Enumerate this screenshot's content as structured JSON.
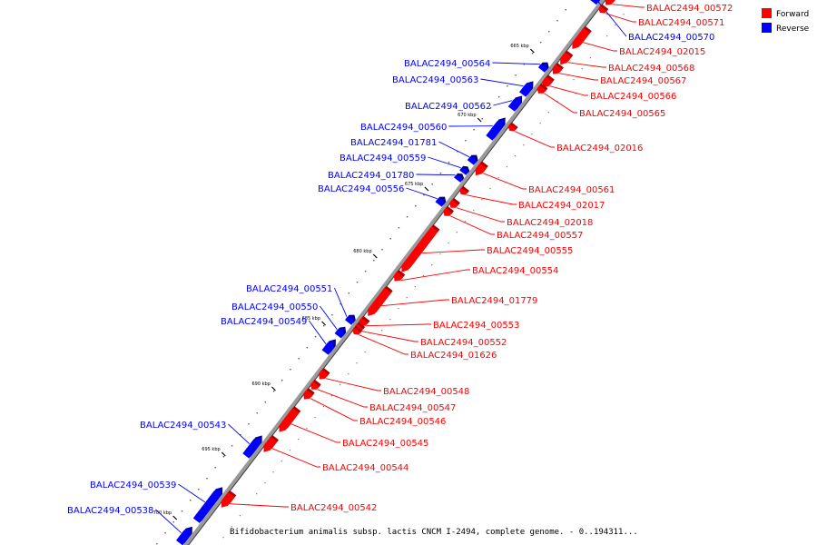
{
  "caption": "Bifidobacterium animalis subsp. lactis CNCM I-2494, complete genome. - 0..194311...",
  "legend": [
    {
      "label": "Forward",
      "color": "#ff0000"
    },
    {
      "label": "Reverse",
      "color": "#0000ff"
    }
  ],
  "colors": {
    "forward": "#ff0000",
    "reverse": "#0000ff",
    "backbone": "#888888"
  },
  "scale_ticks": [
    "665 kbp",
    "670 kbp",
    "675 kbp",
    "680 kbp",
    "685 kbp",
    "690 kbp",
    "695 kbp",
    "700 kbp"
  ],
  "genes_forward": [
    "BALAC2494_00572",
    "BALAC2494_00571",
    "BALAC2494_02015",
    "BALAC2494_00568",
    "BALAC2494_00567",
    "BALAC2494_00566",
    "BALAC2494_00565",
    "BALAC2494_02016",
    "BALAC2494_00561",
    "BALAC2494_02017",
    "BALAC2494_02018",
    "BALAC2494_00557",
    "BALAC2494_00555",
    "BALAC2494_00554",
    "BALAC2494_01779",
    "BALAC2494_00553",
    "BALAC2494_00552",
    "BALAC2494_01626",
    "BALAC2494_00548",
    "BALAC2494_00547",
    "BALAC2494_00546",
    "BALAC2494_00545",
    "BALAC2494_00544",
    "BALAC2494_00542"
  ],
  "genes_reverse": [
    "BALAC2494_00570",
    "BALAC2494_00564",
    "BALAC2494_00563",
    "BALAC2494_00562",
    "BALAC2494_00560",
    "BALAC2494_01781",
    "BALAC2494_00559",
    "BALAC2494_01780",
    "BALAC2494_00556",
    "BALAC2494_00551",
    "BALAC2494_00550",
    "BALAC2494_00549",
    "BALAC2494_00543",
    "BALAC2494_00539",
    "BALAC2494_00538"
  ]
}
